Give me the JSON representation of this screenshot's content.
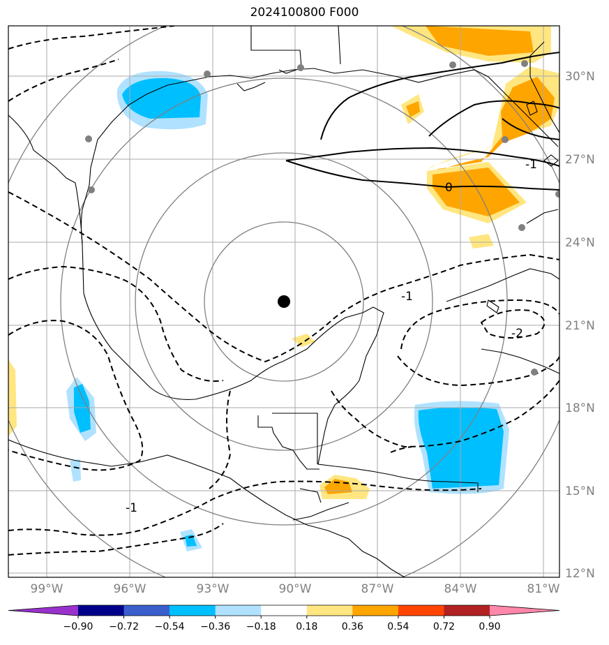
{
  "title": "2024100800 F000",
  "lat_labels": [
    "30°N",
    "27°N",
    "24°N",
    "21°N",
    "18°N",
    "15°N",
    "12°N"
  ],
  "lon_labels": [
    "99°W",
    "96°W",
    "93°W",
    "90°W",
    "87°W",
    "84°W",
    "81°W"
  ],
  "contour_labels": [
    "0",
    "-1",
    "-1",
    "-1",
    "-2"
  ],
  "colorbar": {
    "ticks": [
      "−0.90",
      "−0.72",
      "−0.54",
      "−0.36",
      "−0.18",
      "0.18",
      "0.36",
      "0.54",
      "0.72",
      "0.90"
    ],
    "colors": [
      "#9932cc",
      "#00008b",
      "#3a5fcd",
      "#00bfff",
      "#b0e2ff",
      "#ffffff",
      "#ffe680",
      "#ffa500",
      "#ff4500",
      "#b22222",
      "#ff88aa"
    ]
  },
  "colors": {
    "grid": "#aaaaaa",
    "range_ring": "#808080",
    "station": "#808080",
    "center_marker": "#000000"
  }
}
